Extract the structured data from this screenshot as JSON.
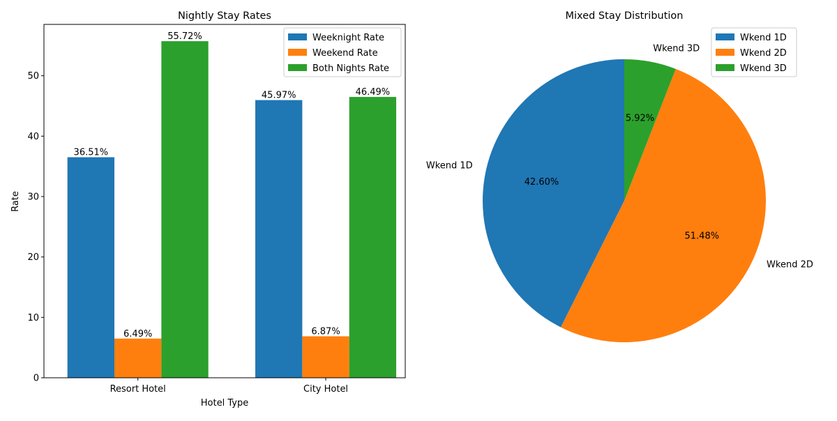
{
  "chart_data": [
    {
      "type": "bar",
      "title": "Nightly Stay Rates",
      "xlabel": "Hotel Type",
      "ylabel": "Rate",
      "categories": [
        "Resort Hotel",
        "City Hotel"
      ],
      "series": [
        {
          "name": "Weeknight Rate",
          "values": [
            36.51,
            45.97
          ],
          "labels": [
            "36.51%",
            "45.97%"
          ],
          "color": "#1f77b4"
        },
        {
          "name": "Weekend Rate",
          "values": [
            6.49,
            6.87
          ],
          "labels": [
            "6.49%",
            "6.87%"
          ],
          "color": "#ff7f0e"
        },
        {
          "name": "Both Nights Rate",
          "values": [
            55.72,
            46.49
          ],
          "labels": [
            "55.72%",
            "46.49%"
          ],
          "color": "#2ca02c"
        }
      ],
      "ylim": [
        0,
        58.5
      ],
      "yticks": [
        0,
        10,
        20,
        30,
        40,
        50
      ],
      "grid": false,
      "legend": "top-right"
    },
    {
      "type": "pie",
      "title": "Mixed Stay Distribution",
      "slices": [
        {
          "label": "Wkend 1D",
          "value": 42.6,
          "pct_label": "42.60%",
          "color": "#1f77b4"
        },
        {
          "label": "Wkend 2D",
          "value": 51.48,
          "pct_label": "51.48%",
          "color": "#ff7f0e"
        },
        {
          "label": "Wkend 3D",
          "value": 5.92,
          "pct_label": "5.92%",
          "color": "#2ca02c"
        }
      ],
      "start": "top",
      "direction": "counterclockwise",
      "legend": "top-right"
    }
  ]
}
